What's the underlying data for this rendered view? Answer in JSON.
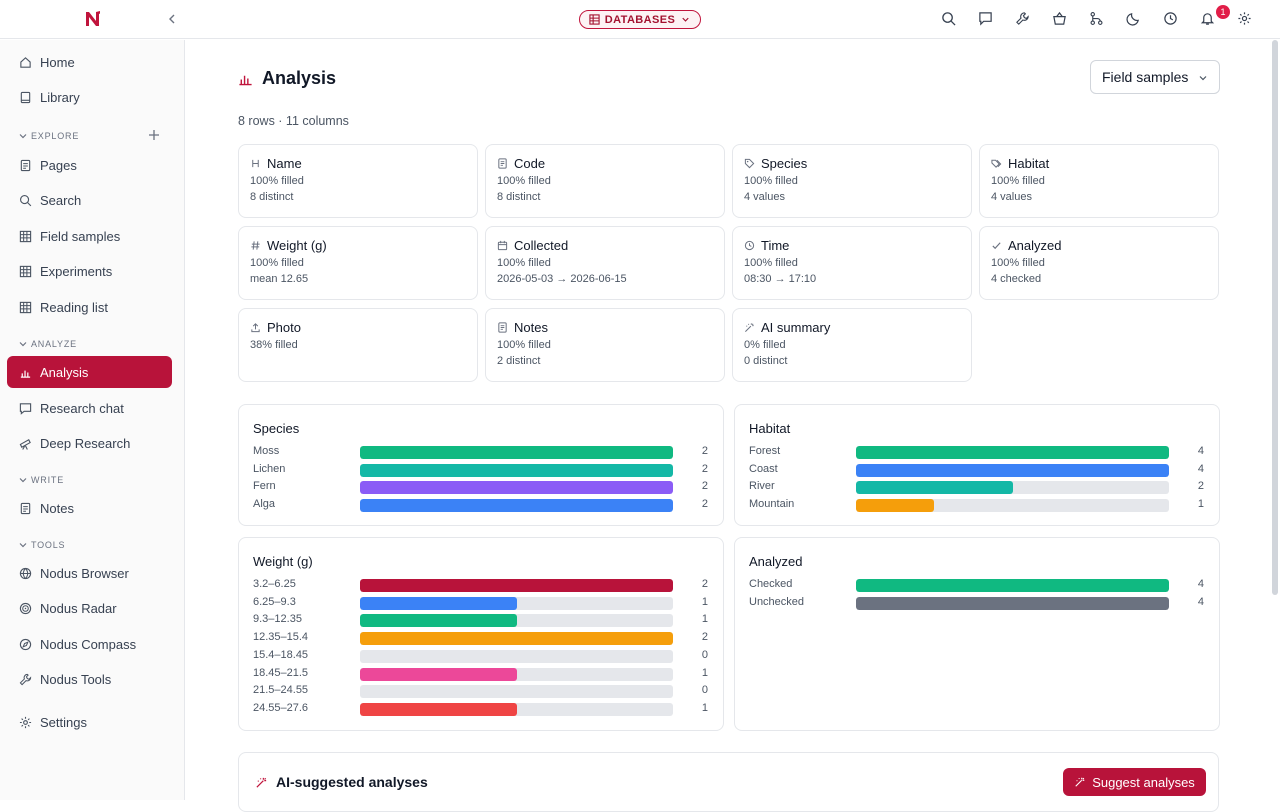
{
  "topbar": {
    "database_label": "DATABASES",
    "notification_count": "1"
  },
  "sidebar": {
    "items_top": [
      {
        "label": "Home",
        "icon": "home-icon"
      },
      {
        "label": "Library",
        "icon": "book-icon"
      }
    ],
    "sections": [
      {
        "label": "EXPLORE",
        "items": [
          "Pages",
          "Search",
          "Field samples",
          "Experiments",
          "Reading list"
        ]
      },
      {
        "label": "ANALYZE",
        "items": [
          "Analysis",
          "Research chat",
          "Deep Research"
        ]
      },
      {
        "label": "WRITE",
        "items": [
          "Notes"
        ]
      },
      {
        "label": "TOOLS",
        "items": [
          "Nodus Browser",
          "Nodus Radar",
          "Nodus Compass",
          "Nodus Tools"
        ]
      }
    ],
    "settings_label": "Settings",
    "active_item": "Analysis"
  },
  "page": {
    "title": "Analysis",
    "table_select": "Field samples",
    "meta": "8 rows · 11 columns"
  },
  "columns": [
    {
      "name": "Name",
      "icon": "heading-icon",
      "line1": "100% filled",
      "line2": "8 distinct"
    },
    {
      "name": "Code",
      "icon": "document-icon",
      "line1": "100% filled",
      "line2": "8 distinct"
    },
    {
      "name": "Species",
      "icon": "tag-icon",
      "line1": "100% filled",
      "line2": "4 values"
    },
    {
      "name": "Habitat",
      "icon": "tags-icon",
      "line1": "100% filled",
      "line2": "4 values"
    },
    {
      "name": "Weight (g)",
      "icon": "hash-icon",
      "line1": "100% filled",
      "line2": "mean 12.65"
    },
    {
      "name": "Collected",
      "icon": "calendar-icon",
      "line1": "100% filled",
      "line2": "2026-05-03 → 2026-06-15"
    },
    {
      "name": "Time",
      "icon": "clock-icon",
      "line1": "100% filled",
      "line2": "08:30 → 17:10"
    },
    {
      "name": "Analyzed",
      "icon": "check-icon",
      "line1": "100% filled",
      "line2": "4 checked"
    },
    {
      "name": "Photo",
      "icon": "upload-icon",
      "line1": "38% filled",
      "line2": ""
    },
    {
      "name": "Notes",
      "icon": "document-icon",
      "line1": "100% filled",
      "line2": "2 distinct"
    },
    {
      "name": "AI summary",
      "icon": "wand-icon",
      "line1": "0% filled",
      "line2": "0 distinct"
    }
  ],
  "stats": [
    {
      "title": "Species",
      "max": 2,
      "rows": [
        {
          "label": "Moss",
          "count": 2,
          "color": "#10b981"
        },
        {
          "label": "Lichen",
          "count": 2,
          "color": "#14b8a6"
        },
        {
          "label": "Fern",
          "count": 2,
          "color": "#8b5cf6"
        },
        {
          "label": "Alga",
          "count": 2,
          "color": "#3b82f6"
        }
      ]
    },
    {
      "title": "Habitat",
      "max": 4,
      "rows": [
        {
          "label": "Forest",
          "count": 4,
          "color": "#10b981"
        },
        {
          "label": "Coast",
          "count": 4,
          "color": "#3b82f6"
        },
        {
          "label": "River",
          "count": 2,
          "color": "#14b8a6"
        },
        {
          "label": "Mountain",
          "count": 1,
          "color": "#f59e0b"
        }
      ]
    },
    {
      "title": "Weight (g)",
      "max": 2,
      "rows": [
        {
          "label": "3.2–6.25",
          "count": 2,
          "color": "#b8133a"
        },
        {
          "label": "6.25–9.3",
          "count": 1,
          "color": "#3b82f6"
        },
        {
          "label": "9.3–12.35",
          "count": 1,
          "color": "#10b981"
        },
        {
          "label": "12.35–15.4",
          "count": 2,
          "color": "#f59e0b"
        },
        {
          "label": "15.4–18.45",
          "count": 0,
          "color": "#8b5cf6"
        },
        {
          "label": "18.45–21.5",
          "count": 1,
          "color": "#ec4899"
        },
        {
          "label": "21.5–24.55",
          "count": 0,
          "color": "#14b8a6"
        },
        {
          "label": "24.55–27.6",
          "count": 1,
          "color": "#ef4444"
        }
      ]
    },
    {
      "title": "Analyzed",
      "max": 4,
      "rows": [
        {
          "label": "Checked",
          "count": 4,
          "color": "#10b981"
        },
        {
          "label": "Unchecked",
          "count": 4,
          "color": "#6b7280"
        }
      ]
    }
  ],
  "ai": {
    "title": "AI-suggested analyses",
    "button_label": "Suggest analyses"
  }
}
